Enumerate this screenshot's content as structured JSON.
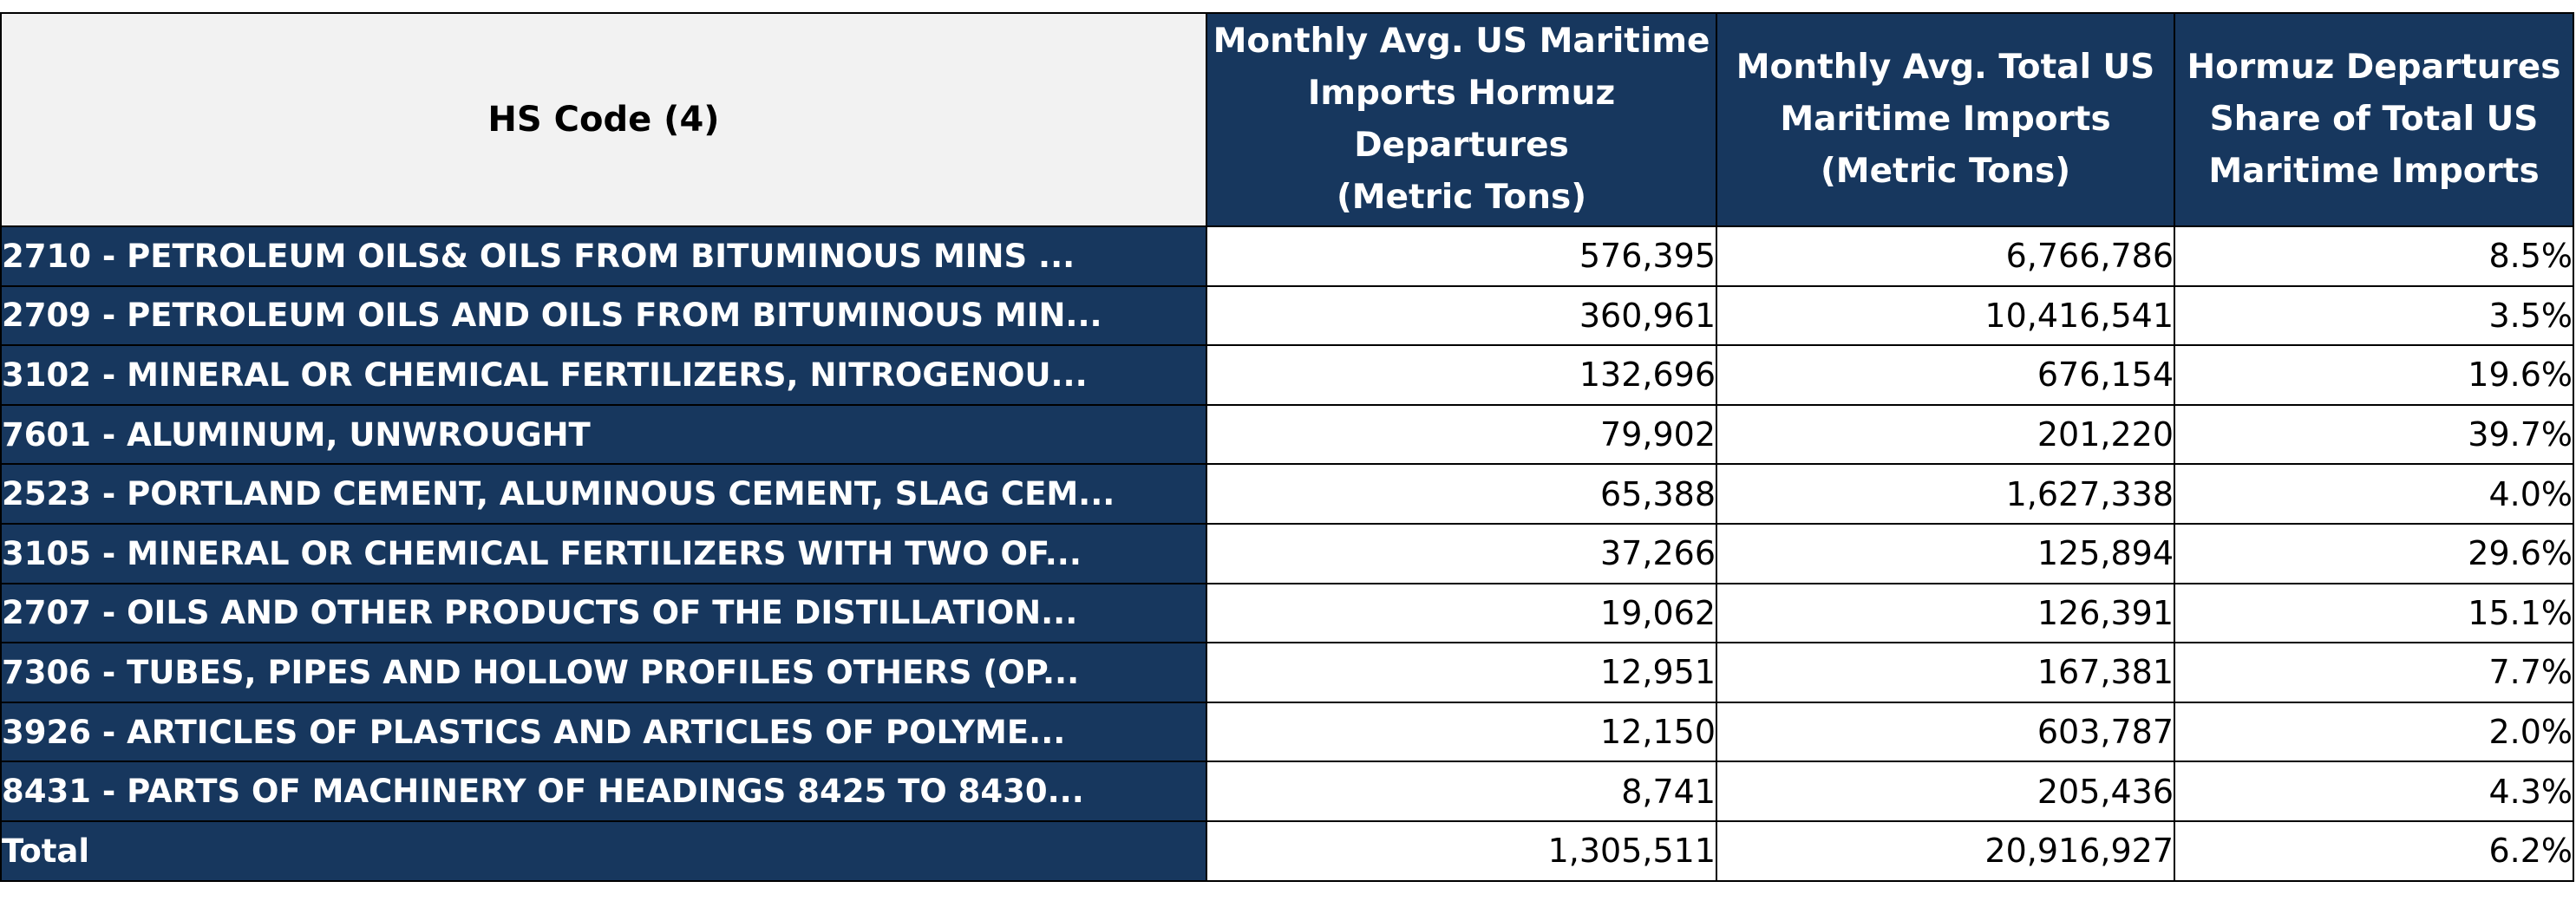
{
  "chart_data": {
    "type": "table",
    "columns": [
      {
        "lines": [
          "HS Code (4)"
        ]
      },
      {
        "lines": [
          "Monthly Avg. US Maritime",
          "Imports Hormuz",
          "Departures",
          "(Metric Tons)"
        ]
      },
      {
        "lines": [
          "Monthly Avg. Total US",
          "Maritime Imports",
          "(Metric Tons)"
        ]
      },
      {
        "lines": [
          "Hormuz Departures",
          "Share of Total US",
          "Maritime Imports"
        ]
      }
    ],
    "rows": [
      {
        "code": "2710 - PETROLEUM OILS& OILS FROM BITUMINOUS MINS ...",
        "hormuz": "576,395",
        "total": "6,766,786",
        "share": "8.5%"
      },
      {
        "code": "2709 - PETROLEUM OILS AND OILS FROM BITUMINOUS MIN...",
        "hormuz": "360,961",
        "total": "10,416,541",
        "share": "3.5%"
      },
      {
        "code": "3102 - MINERAL OR CHEMICAL FERTILIZERS, NITROGENOU...",
        "hormuz": "132,696",
        "total": "676,154",
        "share": "19.6%"
      },
      {
        "code": "7601 - ALUMINUM, UNWROUGHT",
        "hormuz": "79,902",
        "total": "201,220",
        "share": "39.7%"
      },
      {
        "code": "2523 - PORTLAND CEMENT, ALUMINOUS CEMENT, SLAG CEM...",
        "hormuz": "65,388",
        "total": "1,627,338",
        "share": "4.0%"
      },
      {
        "code": "3105 - MINERAL OR CHEMICAL FERTILIZERS WITH TWO OF...",
        "hormuz": "37,266",
        "total": "125,894",
        "share": "29.6%"
      },
      {
        "code": "2707 - OILS AND OTHER PRODUCTS OF THE DISTILLATION...",
        "hormuz": "19,062",
        "total": "126,391",
        "share": "15.1%"
      },
      {
        "code": "7306 - TUBES, PIPES AND HOLLOW PROFILES OTHERS (OP...",
        "hormuz": "12,951",
        "total": "167,381",
        "share": "7.7%"
      },
      {
        "code": "3926 - ARTICLES OF PLASTICS AND ARTICLES OF POLYME...",
        "hormuz": "12,150",
        "total": "603,787",
        "share": "2.0%"
      },
      {
        "code": "8431 - PARTS OF MACHINERY OF HEADINGS 8425 TO 8430...",
        "hormuz": "8,741",
        "total": "205,436",
        "share": "4.3%"
      }
    ],
    "total_row": {
      "code": "Total",
      "hormuz": "1,305,511",
      "total": "20,916,927",
      "share": "6.2%"
    },
    "colors": {
      "header_fill": "#17375e",
      "first_header_fill": "#f2f2f2",
      "label_fill": "#17375e",
      "cell_fill": "#ffffff",
      "border": "#000000"
    }
  }
}
